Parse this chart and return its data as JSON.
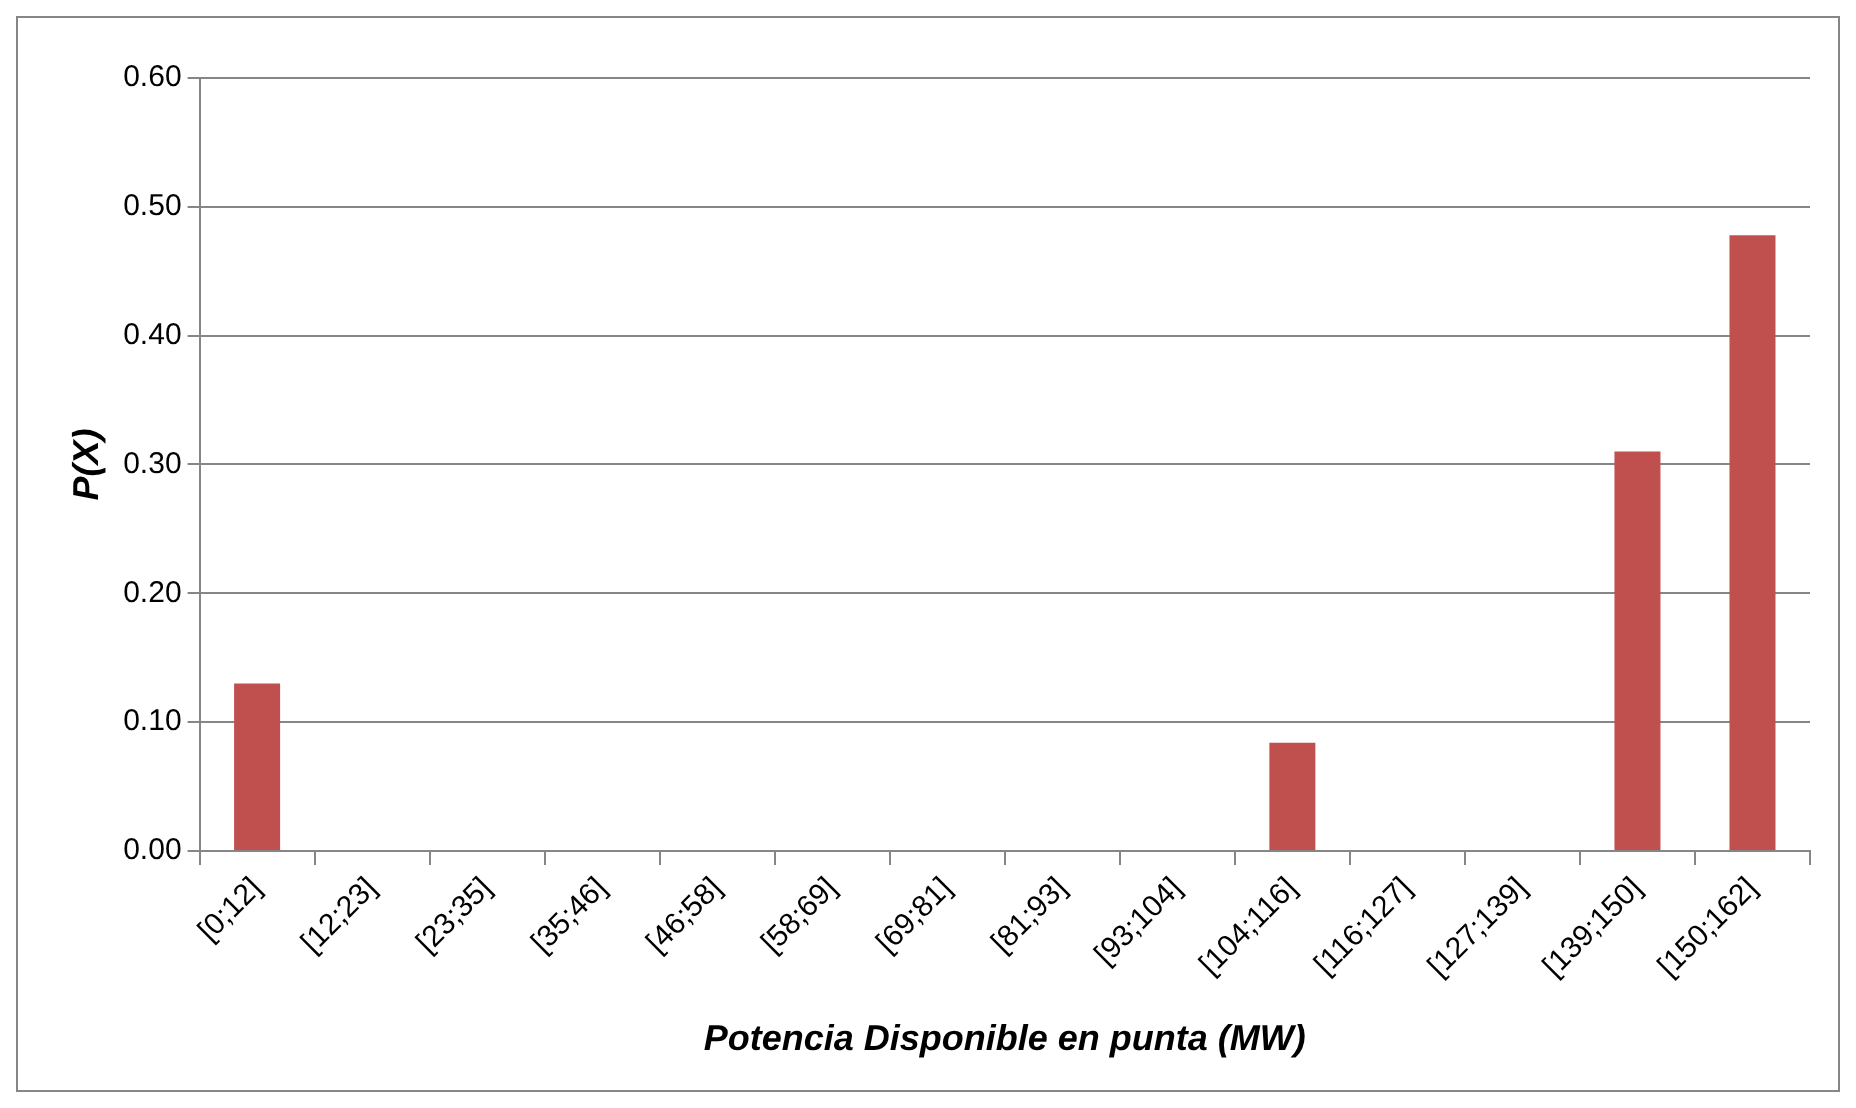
{
  "chart_data": {
    "type": "bar",
    "xlabel": "Potencia Disponible en punta (MW)",
    "ylabel": "P(X)",
    "categories": [
      "[0;12]",
      "[12;23]",
      "[23;35]",
      "[35;46]",
      "[46;58]",
      "[58;69]",
      "[69;81]",
      "[81;93]",
      "[93;104]",
      "[104;116]",
      "[116;127]",
      "[127;139]",
      "[139;150]",
      "[150;162]"
    ],
    "values": [
      0.13,
      0,
      0,
      0,
      0,
      0,
      0,
      0,
      0,
      0.084,
      0,
      0,
      0.31,
      0.478
    ],
    "color": "#c0504d",
    "ylim": [
      0,
      0.6
    ],
    "yticks": [
      {
        "value": 0,
        "label": "0.00"
      },
      {
        "value": 0.1,
        "label": "0.10"
      },
      {
        "value": 0.2,
        "label": "0.20"
      },
      {
        "value": 0.3,
        "label": "0.30"
      },
      {
        "value": 0.4,
        "label": "0.40"
      },
      {
        "value": 0.5,
        "label": "0.50"
      },
      {
        "value": 0.6,
        "label": "0.60"
      }
    ],
    "grid": "y",
    "legend": false
  }
}
